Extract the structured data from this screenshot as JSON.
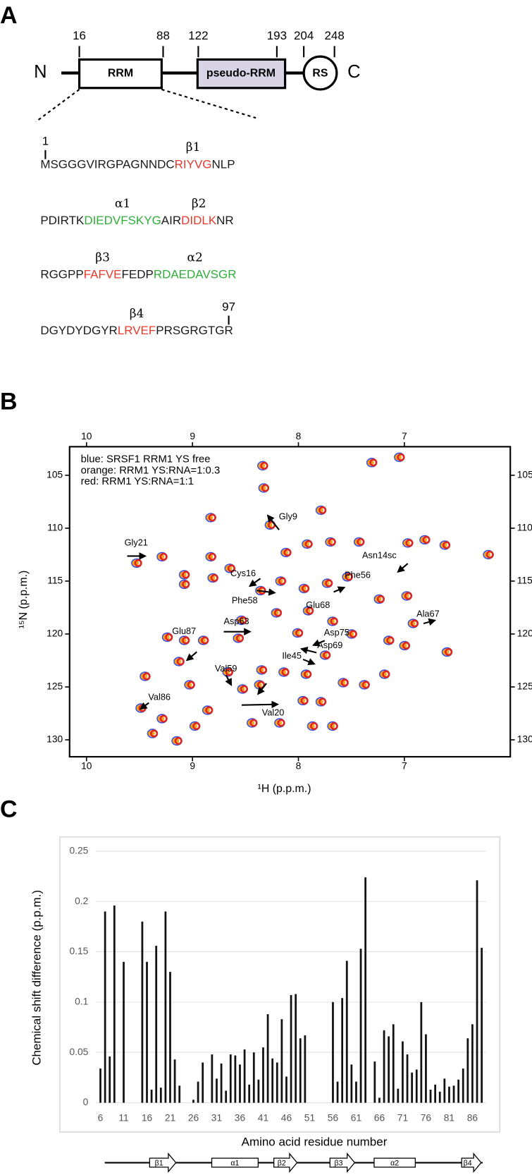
{
  "panel_labels": [
    "A",
    "B",
    "C"
  ],
  "domain_diagram": {
    "positions": [
      16,
      88,
      122,
      193,
      204,
      248
    ],
    "termini": [
      "N",
      "C"
    ],
    "domains": [
      "RRM",
      "pseudo-RRM",
      "RS"
    ]
  },
  "sequence": {
    "first": 1,
    "last": 97,
    "lines": [
      {
        "segments": [
          {
            "text": "MSGGGVIRGPAGNNDC",
            "color": "#1a1a1a"
          },
          {
            "text": "RIYVG",
            "color": "#e8392a",
            "label": "β1"
          },
          {
            "text": "NLP",
            "color": "#1a1a1a"
          }
        ]
      },
      {
        "segments": [
          {
            "text": "PDIRTK",
            "color": "#1a1a1a"
          },
          {
            "text": "DIEDVFSKYG",
            "color": "#2fae3a",
            "label": "α1"
          },
          {
            "text": "AIR",
            "color": "#1a1a1a"
          },
          {
            "text": "DIDLK",
            "color": "#e8392a",
            "label": "β2"
          },
          {
            "text": "NR",
            "color": "#1a1a1a"
          }
        ]
      },
      {
        "segments": [
          {
            "text": "RGGPP",
            "color": "#1a1a1a"
          },
          {
            "text": "FAFVE",
            "color": "#e8392a",
            "label": "β3"
          },
          {
            "text": "FEDP",
            "color": "#1a1a1a"
          },
          {
            "text": "RDAEDAVSGR",
            "color": "#2fae3a",
            "label": "α2"
          }
        ]
      },
      {
        "segments": [
          {
            "text": "DGYDYDGYR",
            "color": "#1a1a1a"
          },
          {
            "text": "LRVEF",
            "color": "#e8392a",
            "label": "β4"
          },
          {
            "text": "PRSGRGTGR",
            "color": "#1a1a1a"
          }
        ]
      }
    ]
  },
  "chart_data": [
    {
      "type": "spectrum",
      "legend": [
        "blue: SRSF1 RRM1 YS free",
        "orange: RRM1 YS:RNA=1:0.3",
        "red: RRM1 YS:RNA=1:1"
      ],
      "peak_colors": [
        "#3a4fd6",
        "#f2a51c",
        "#e3261b"
      ],
      "x_label": "¹H (p.p.m.)",
      "y_label": "¹⁵N (p.p.m.)",
      "xlim": [
        10.16,
        6.0
      ],
      "ylim": [
        102.3,
        131.6
      ],
      "xticks": [
        10,
        9,
        8,
        7
      ],
      "yticks": [
        105,
        110,
        115,
        120,
        125,
        130
      ],
      "x": [
        7.04,
        7.3,
        8.33,
        8.32,
        7.78,
        8.82,
        8.26,
        8.11,
        7.91,
        7.69,
        7.42,
        6.61,
        6.8,
        6.96,
        6.2,
        9.28,
        8.82,
        9.07,
        9.07,
        8.8,
        8.64,
        8.35,
        8.16,
        7.94,
        7.72,
        7.53,
        7.23,
        6.97,
        6.91,
        7.9,
        7.67,
        8.2,
        8.53,
        9.23,
        9.07,
        8.89,
        8.56,
        8.0,
        7.49,
        7.14,
        6.99,
        6.59,
        7.74,
        7.92,
        7.18,
        7.57,
        8.13,
        8.34,
        8.66,
        8.36,
        8.52,
        9.02,
        9.12,
        9.44,
        9.48,
        8.85,
        7.95,
        7.37,
        7.78,
        9.28,
        9.37,
        8.17,
        7.86,
        8.43,
        9.14,
        8.97,
        7.67,
        9.52
      ],
      "y": [
        103.3,
        103.8,
        104.1,
        106.2,
        108.3,
        109.0,
        109.7,
        112.3,
        111.5,
        111.3,
        111.3,
        111.6,
        111.1,
        111.4,
        112.5,
        112.7,
        112.7,
        114.4,
        115.3,
        114.7,
        113.8,
        115.9,
        115.0,
        115.7,
        115.2,
        114.6,
        116.7,
        116.4,
        119.0,
        117.8,
        118.8,
        118.0,
        118.7,
        120.3,
        120.6,
        120.6,
        120.4,
        119.9,
        120.0,
        120.6,
        121.1,
        121.7,
        122.0,
        123.8,
        123.8,
        124.6,
        123.6,
        123.4,
        123.6,
        124.8,
        125.2,
        124.8,
        122.6,
        124.0,
        127.0,
        127.2,
        126.3,
        124.8,
        126.4,
        128.0,
        129.4,
        128.4,
        128.7,
        128.4,
        130.1,
        128.7,
        128.7,
        113.3
      ],
      "annotations": [
        "Gly9",
        "Gly21",
        "Cys16",
        "Phe58",
        "Asn14sc",
        "Phe56",
        "Glu68",
        "Asp63",
        "Ala67",
        "Glu87",
        "Asp75",
        "Asp69",
        "Ile45",
        "Val59",
        "Val86",
        "Val20"
      ]
    },
    {
      "type": "bar",
      "x_label": "Amino acid residue number",
      "y_label": "Chemical shift difference (p.p.m.)",
      "color": "#111111",
      "grid": true,
      "xlim": [
        5,
        89
      ],
      "ylim": [
        0,
        0.25
      ],
      "xticks": [
        6,
        11,
        16,
        21,
        26,
        31,
        36,
        41,
        46,
        51,
        56,
        61,
        66,
        71,
        76,
        81,
        86
      ],
      "yticks": [
        0,
        0.05,
        0.1,
        0.15,
        0.2,
        0.25
      ],
      "x": [
        6,
        7,
        8,
        9,
        11,
        15,
        16,
        17,
        18,
        19,
        20,
        21,
        22,
        23,
        26,
        27,
        28,
        30,
        31,
        32,
        33,
        34,
        35,
        36,
        37,
        38,
        39,
        40,
        41,
        42,
        43,
        44,
        45,
        46,
        47,
        48,
        49,
        50,
        56,
        57,
        58,
        59,
        60,
        61,
        62,
        63,
        65,
        66,
        67,
        68,
        69,
        70,
        71,
        72,
        73,
        74,
        75,
        76,
        77,
        78,
        79,
        80,
        81,
        82,
        83,
        84,
        85,
        86,
        87,
        88
      ],
      "values": [
        0.034,
        0.19,
        0.046,
        0.196,
        0.14,
        0.18,
        0.14,
        0.013,
        0.156,
        0.015,
        0.19,
        0.13,
        0.043,
        0.017,
        0.003,
        0.021,
        0.04,
        0.048,
        0.024,
        0.039,
        0.012,
        0.048,
        0.047,
        0.038,
        0.053,
        0.018,
        0.05,
        0.023,
        0.055,
        0.088,
        0.044,
        0.04,
        0.083,
        0.026,
        0.107,
        0.108,
        0.064,
        0.067,
        0.1,
        0.021,
        0.104,
        0.141,
        0.038,
        0.021,
        0.153,
        0.224,
        0.041,
        0.005,
        0.072,
        0.066,
        0.078,
        0.014,
        0.061,
        0.048,
        0.03,
        0.033,
        0.1,
        0.068,
        0.013,
        0.018,
        0.011,
        0.024,
        0.016,
        0.017,
        0.023,
        0.034,
        0.064,
        0.078,
        0.221,
        0.154
      ],
      "secondary_structure": [
        "β1",
        "α1",
        "β2",
        "β3",
        "α2",
        "β4"
      ]
    }
  ]
}
